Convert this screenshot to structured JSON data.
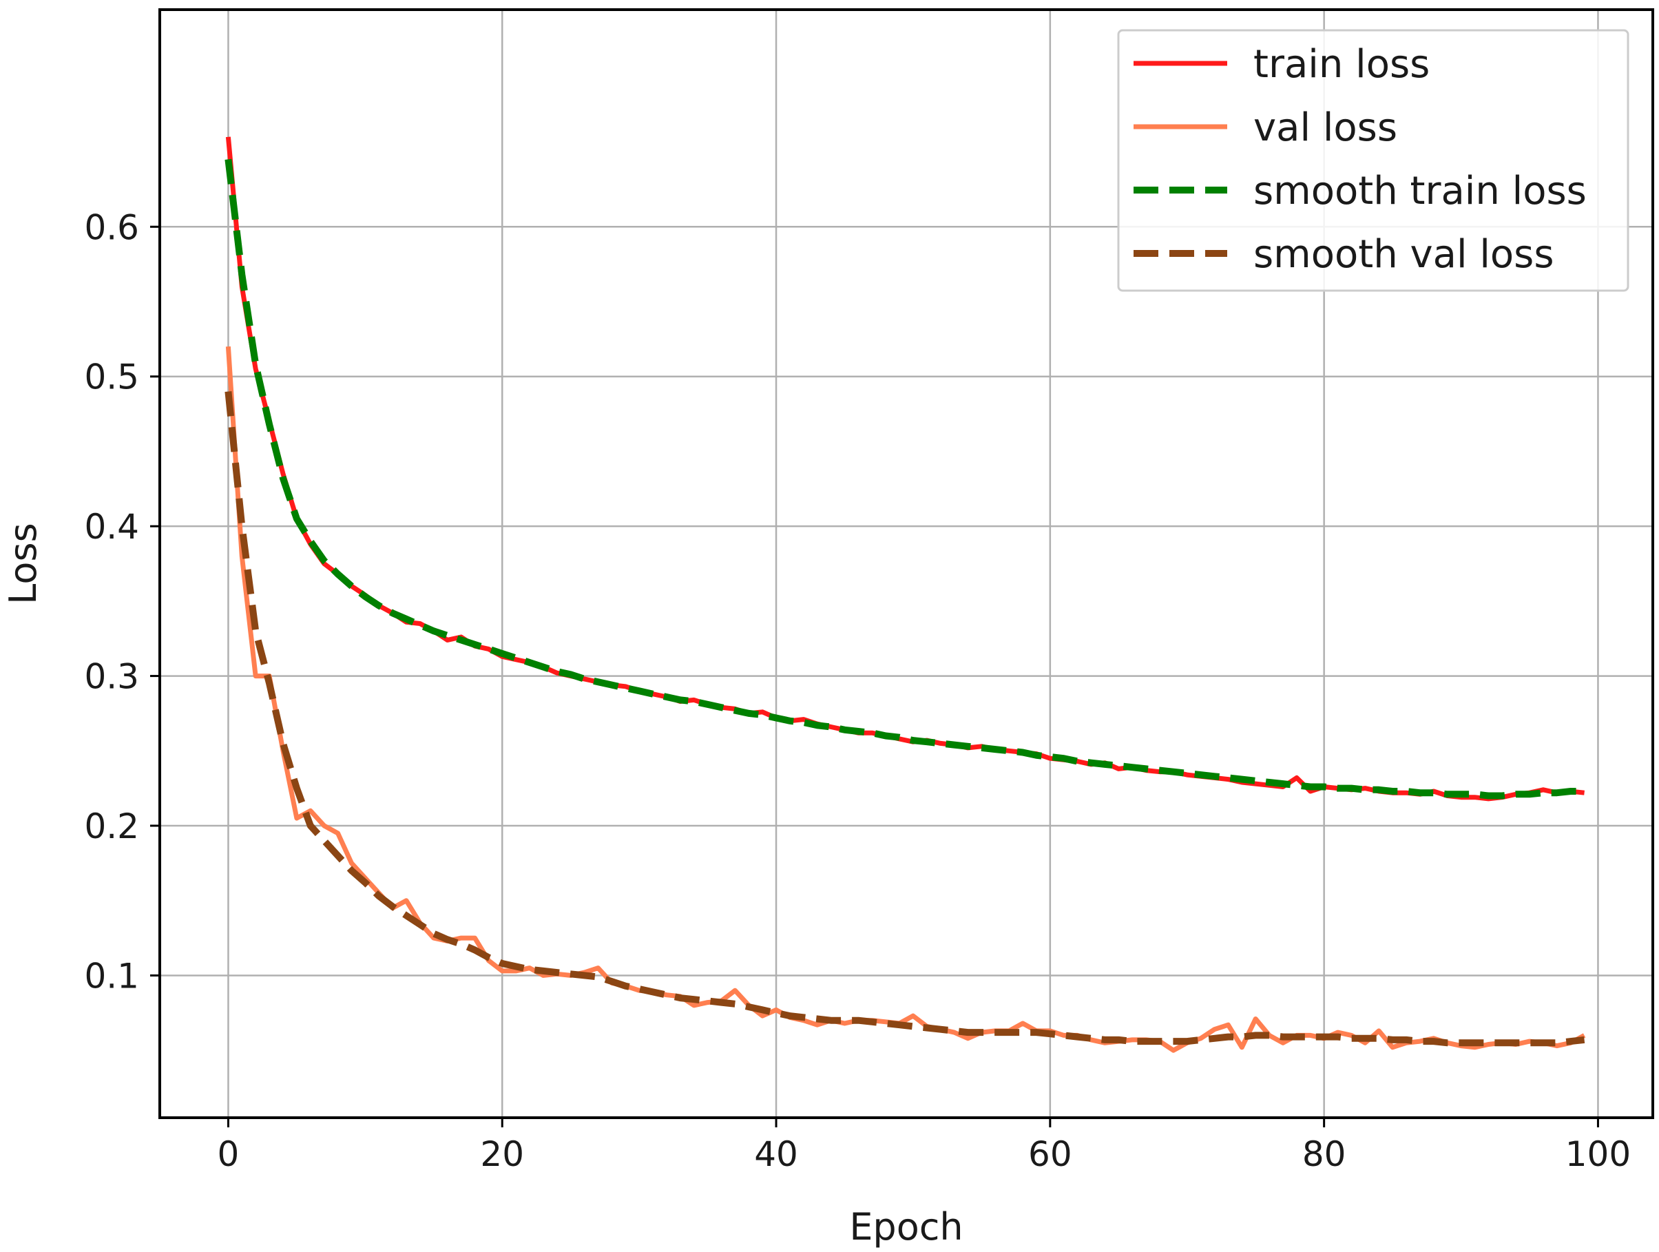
{
  "chart_data": {
    "type": "line",
    "title": "",
    "xlabel": "Epoch",
    "ylabel": "Loss",
    "xlim": [
      -5,
      104
    ],
    "ylim": [
      0.005,
      0.745
    ],
    "xticks": [
      0,
      20,
      40,
      60,
      80,
      100
    ],
    "yticks": [
      0.1,
      0.2,
      0.3,
      0.4,
      0.5,
      0.6
    ],
    "xtick_labels": [
      "0",
      "20",
      "40",
      "60",
      "80",
      "100"
    ],
    "ytick_labels": [
      "0.1",
      "0.2",
      "0.3",
      "0.4",
      "0.5",
      "0.6"
    ],
    "grid": true,
    "legend_position": "top-right",
    "x": [
      0,
      1,
      2,
      3,
      4,
      5,
      6,
      7,
      8,
      9,
      10,
      11,
      12,
      13,
      14,
      15,
      16,
      17,
      18,
      19,
      20,
      21,
      22,
      23,
      24,
      25,
      26,
      27,
      28,
      29,
      30,
      31,
      32,
      33,
      34,
      35,
      36,
      37,
      38,
      39,
      40,
      41,
      42,
      43,
      44,
      45,
      46,
      47,
      48,
      49,
      50,
      51,
      52,
      53,
      54,
      55,
      56,
      57,
      58,
      59,
      60,
      61,
      62,
      63,
      64,
      65,
      66,
      67,
      68,
      69,
      70,
      71,
      72,
      73,
      74,
      75,
      76,
      77,
      78,
      79,
      80,
      81,
      82,
      83,
      84,
      85,
      86,
      87,
      88,
      89,
      90,
      91,
      92,
      93,
      94,
      95,
      96,
      97,
      98,
      99
    ],
    "series": [
      {
        "name": "train loss",
        "color": "#ff1a1a",
        "style": "solid",
        "values": [
          0.66,
          0.56,
          0.505,
          0.47,
          0.435,
          0.405,
          0.388,
          0.375,
          0.368,
          0.36,
          0.354,
          0.347,
          0.342,
          0.336,
          0.335,
          0.33,
          0.324,
          0.326,
          0.32,
          0.318,
          0.313,
          0.311,
          0.309,
          0.306,
          0.302,
          0.3,
          0.298,
          0.296,
          0.294,
          0.293,
          0.29,
          0.288,
          0.286,
          0.283,
          0.284,
          0.281,
          0.279,
          0.278,
          0.275,
          0.276,
          0.272,
          0.27,
          0.271,
          0.268,
          0.266,
          0.264,
          0.262,
          0.262,
          0.26,
          0.258,
          0.256,
          0.257,
          0.255,
          0.254,
          0.252,
          0.253,
          0.251,
          0.25,
          0.249,
          0.248,
          0.245,
          0.244,
          0.243,
          0.241,
          0.242,
          0.238,
          0.239,
          0.237,
          0.236,
          0.236,
          0.234,
          0.233,
          0.232,
          0.231,
          0.229,
          0.228,
          0.227,
          0.226,
          0.232,
          0.223,
          0.226,
          0.225,
          0.224,
          0.225,
          0.223,
          0.222,
          0.222,
          0.221,
          0.223,
          0.22,
          0.219,
          0.219,
          0.218,
          0.219,
          0.221,
          0.222,
          0.224,
          0.222,
          0.223,
          0.222
        ]
      },
      {
        "name": "val loss",
        "color": "#ff7f50",
        "style": "solid",
        "values": [
          0.52,
          0.38,
          0.3,
          0.3,
          0.25,
          0.205,
          0.21,
          0.2,
          0.195,
          0.175,
          0.165,
          0.155,
          0.145,
          0.15,
          0.135,
          0.125,
          0.123,
          0.125,
          0.125,
          0.11,
          0.103,
          0.103,
          0.105,
          0.1,
          0.101,
          0.1,
          0.102,
          0.105,
          0.095,
          0.093,
          0.09,
          0.089,
          0.087,
          0.086,
          0.08,
          0.082,
          0.083,
          0.09,
          0.08,
          0.073,
          0.077,
          0.072,
          0.07,
          0.067,
          0.07,
          0.068,
          0.07,
          0.07,
          0.069,
          0.068,
          0.073,
          0.066,
          0.064,
          0.062,
          0.058,
          0.062,
          0.063,
          0.063,
          0.068,
          0.063,
          0.063,
          0.06,
          0.06,
          0.057,
          0.055,
          0.056,
          0.057,
          0.057,
          0.056,
          0.05,
          0.055,
          0.058,
          0.064,
          0.067,
          0.052,
          0.071,
          0.06,
          0.055,
          0.06,
          0.06,
          0.058,
          0.062,
          0.06,
          0.055,
          0.063,
          0.052,
          0.055,
          0.056,
          0.058,
          0.055,
          0.053,
          0.052,
          0.054,
          0.055,
          0.054,
          0.056,
          0.055,
          0.053,
          0.055,
          0.06
        ]
      },
      {
        "name": "smooth train loss",
        "color": "#008000",
        "style": "dashed",
        "values": [
          0.645,
          0.568,
          0.508,
          0.468,
          0.432,
          0.405,
          0.39,
          0.377,
          0.368,
          0.36,
          0.353,
          0.347,
          0.342,
          0.338,
          0.334,
          0.33,
          0.327,
          0.324,
          0.321,
          0.318,
          0.315,
          0.312,
          0.309,
          0.306,
          0.303,
          0.301,
          0.298,
          0.296,
          0.294,
          0.292,
          0.29,
          0.288,
          0.286,
          0.284,
          0.283,
          0.281,
          0.279,
          0.277,
          0.275,
          0.274,
          0.272,
          0.27,
          0.269,
          0.267,
          0.266,
          0.264,
          0.263,
          0.262,
          0.26,
          0.259,
          0.257,
          0.256,
          0.255,
          0.254,
          0.253,
          0.252,
          0.251,
          0.25,
          0.249,
          0.247,
          0.246,
          0.245,
          0.243,
          0.242,
          0.241,
          0.24,
          0.239,
          0.238,
          0.237,
          0.236,
          0.235,
          0.234,
          0.233,
          0.232,
          0.231,
          0.23,
          0.229,
          0.228,
          0.227,
          0.226,
          0.226,
          0.225,
          0.225,
          0.224,
          0.224,
          0.223,
          0.223,
          0.222,
          0.222,
          0.221,
          0.221,
          0.221,
          0.22,
          0.22,
          0.221,
          0.221,
          0.222,
          0.222,
          0.223,
          0.223
        ]
      },
      {
        "name": "smooth val loss",
        "color": "#8b4513",
        "style": "dashed",
        "values": [
          0.49,
          0.4,
          0.33,
          0.295,
          0.255,
          0.225,
          0.2,
          0.19,
          0.18,
          0.17,
          0.162,
          0.153,
          0.146,
          0.14,
          0.134,
          0.128,
          0.124,
          0.121,
          0.117,
          0.112,
          0.108,
          0.106,
          0.104,
          0.103,
          0.102,
          0.101,
          0.1,
          0.099,
          0.096,
          0.093,
          0.091,
          0.089,
          0.087,
          0.085,
          0.084,
          0.083,
          0.082,
          0.081,
          0.079,
          0.077,
          0.075,
          0.073,
          0.072,
          0.071,
          0.07,
          0.07,
          0.07,
          0.069,
          0.068,
          0.067,
          0.066,
          0.065,
          0.064,
          0.063,
          0.062,
          0.062,
          0.062,
          0.062,
          0.062,
          0.062,
          0.061,
          0.06,
          0.059,
          0.058,
          0.057,
          0.057,
          0.056,
          0.056,
          0.056,
          0.056,
          0.056,
          0.057,
          0.058,
          0.059,
          0.059,
          0.06,
          0.06,
          0.059,
          0.059,
          0.059,
          0.059,
          0.059,
          0.058,
          0.058,
          0.058,
          0.057,
          0.057,
          0.056,
          0.056,
          0.055,
          0.055,
          0.055,
          0.055,
          0.055,
          0.055,
          0.055,
          0.055,
          0.055,
          0.056,
          0.057
        ]
      }
    ]
  }
}
